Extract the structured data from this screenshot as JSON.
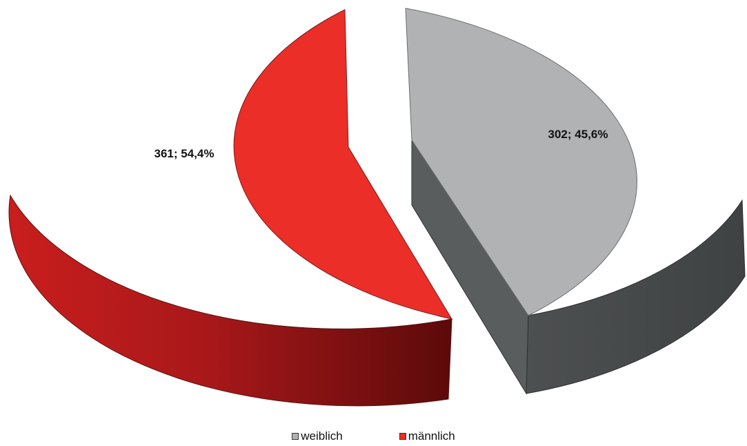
{
  "chart_data": {
    "type": "pie",
    "style": "3d-exploded",
    "slices": [
      {
        "name": "weiblich",
        "value": 302,
        "percent": 45.6,
        "label": "302; 45,6%",
        "color": "#b0b2b4",
        "side_color": "#454849"
      },
      {
        "name": "männlich",
        "value": 361,
        "percent": 54.4,
        "label": "361; 54,4%",
        "color": "#eb2e28",
        "side_color": "#8b1212"
      }
    ],
    "legend": {
      "position": "bottom",
      "items": [
        {
          "label": "weiblich",
          "color": "#b0b2b4"
        },
        {
          "label": "männlich",
          "color": "#eb2e28"
        }
      ]
    }
  }
}
